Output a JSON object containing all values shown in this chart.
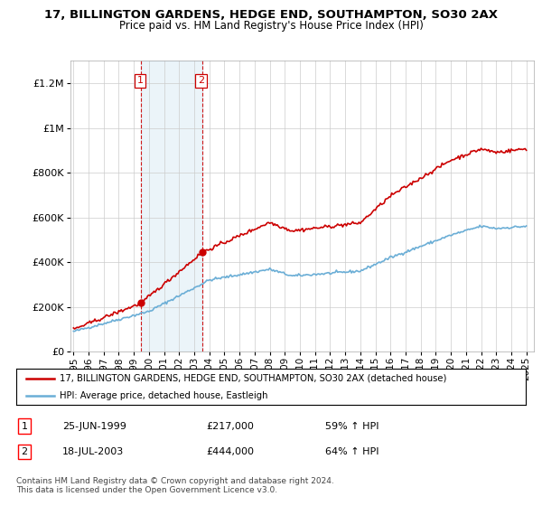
{
  "title": "17, BILLINGTON GARDENS, HEDGE END, SOUTHAMPTON, SO30 2AX",
  "subtitle": "Price paid vs. HM Land Registry's House Price Index (HPI)",
  "ylabel_ticks": [
    "£0",
    "£200K",
    "£400K",
    "£600K",
    "£800K",
    "£1M",
    "£1.2M"
  ],
  "ytick_values": [
    0,
    200000,
    400000,
    600000,
    800000,
    1000000,
    1200000
  ],
  "ylim": [
    0,
    1300000
  ],
  "xlim_start": 1994.8,
  "xlim_end": 2025.5,
  "hpi_color": "#6baed6",
  "price_color": "#cc0000",
  "sale1_date": 1999.48,
  "sale1_price": 217000,
  "sale2_date": 2003.54,
  "sale2_price": 444000,
  "legend_line1": "17, BILLINGTON GARDENS, HEDGE END, SOUTHAMPTON, SO30 2AX (detached house)",
  "legend_line2": "HPI: Average price, detached house, Eastleigh",
  "table_row1": [
    "1",
    "25-JUN-1999",
    "£217,000",
    "59% ↑ HPI"
  ],
  "table_row2": [
    "2",
    "18-JUL-2003",
    "£444,000",
    "64% ↑ HPI"
  ],
  "footnote": "Contains HM Land Registry data © Crown copyright and database right 2024.\nThis data is licensed under the Open Government Licence v3.0.",
  "vline1_date": 1999.48,
  "vline2_date": 2003.54,
  "background_color": "#ffffff",
  "grid_color": "#cccccc"
}
